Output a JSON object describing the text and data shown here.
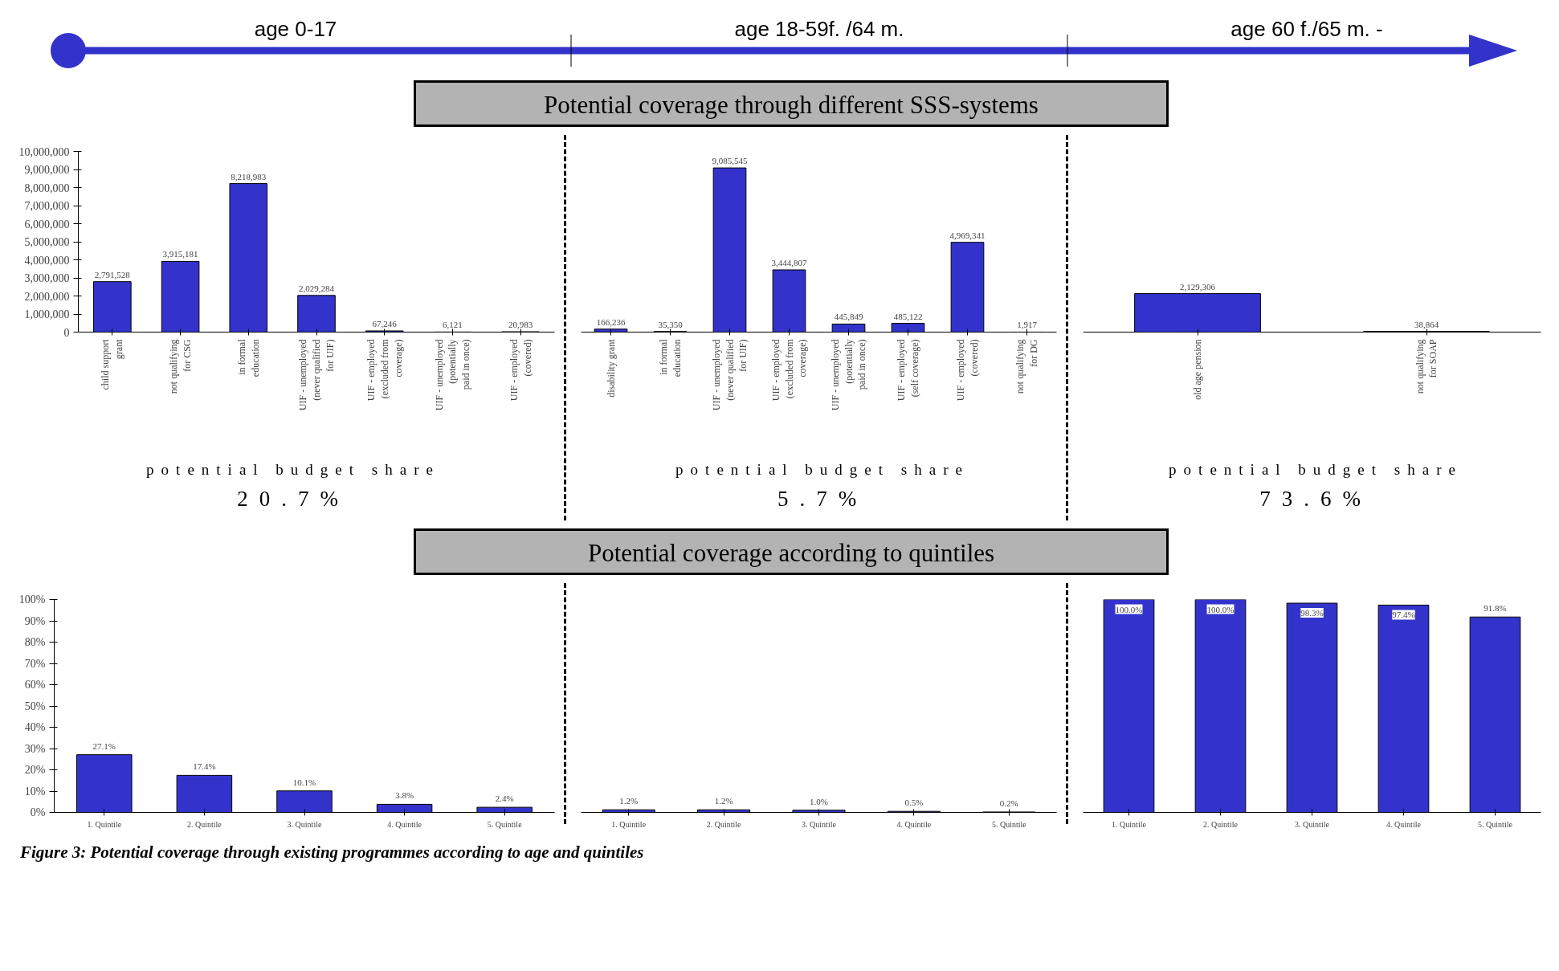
{
  "chart_data": [
    {
      "type": "other",
      "title": "Potential coverage through different SSS-systems",
      "annotations": [
        "age 0-17",
        "age 18-59f. /64 m.",
        "age 60 f./65 m. -"
      ]
    },
    {
      "type": "bar",
      "categories": [
        "child support grant",
        "not qualifying for CSG",
        "in formal education",
        "UIF - unemployed (never qualified for UIF)",
        "UIF - employed (excluded from coverage)",
        "UIF - unemployed (potentially paid in once)",
        "UIF - employed (covered)"
      ],
      "values": [
        2791528,
        3915181,
        8218983,
        2029284,
        67246,
        6121,
        20983
      ],
      "value_labels": [
        "2,791,528",
        "3,915,181",
        "8,218,983",
        "2,029,284",
        "67,246",
        "6,121",
        "20,983"
      ],
      "color": "#3333cc",
      "ylim": [
        0,
        10000000
      ],
      "yticks": [
        {
          "value": 0,
          "label": "0"
        },
        {
          "value": 1000000,
          "label": "1,000,000"
        },
        {
          "value": 2000000,
          "label": "2,000,000"
        },
        {
          "value": 3000000,
          "label": "3,000,000"
        },
        {
          "value": 4000000,
          "label": "4,000,000"
        },
        {
          "value": 5000000,
          "label": "5,000,000"
        },
        {
          "value": 6000000,
          "label": "6,000,000"
        },
        {
          "value": 7000000,
          "label": "7,000,000"
        },
        {
          "value": 8000000,
          "label": "8,000,000"
        },
        {
          "value": 9000000,
          "label": "9,000,000"
        },
        {
          "value": 10000000,
          "label": "10,000,000"
        }
      ],
      "annotations": [
        "potential budget share",
        "20.7%"
      ]
    },
    {
      "type": "bar",
      "categories": [
        "disability grant",
        "in formal education",
        "UIF - unemployed (never qualified for UIF)",
        "UIF - employed (excluded from coverage)",
        "UIF - unemployed (potentially paid in once)",
        "UIF - employed (self coverage)",
        "UIF - employed (covered)",
        "not qualifying for DG"
      ],
      "values": [
        166236,
        35350,
        9085545,
        3444807,
        445849,
        485122,
        4969341,
        1917
      ],
      "value_labels": [
        "166,236",
        "35,350",
        "9,085,545",
        "3,444,807",
        "445,849",
        "485,122",
        "4,969,341",
        "1,917"
      ],
      "color": "#3333cc",
      "ylim": [
        0,
        10000000
      ],
      "tick_labels": "x",
      "annotations": [
        "potential budget share",
        "5.7%"
      ]
    },
    {
      "type": "bar",
      "categories": [
        "old age pension",
        "not qualifying for SOAP"
      ],
      "values": [
        2129306,
        38864
      ],
      "value_labels": [
        "2,129,306",
        "38,864"
      ],
      "color": "#3333cc",
      "ylim": [
        0,
        10000000
      ],
      "tick_labels": "x",
      "annotations": [
        "potential budget share",
        "73.6%"
      ]
    },
    {
      "type": "other",
      "title": "Potential coverage according to quintiles"
    },
    {
      "type": "bar",
      "categories": [
        "1. Quintile",
        "2. Quintile",
        "3. Quintile",
        "4. Quintile",
        "5. Quintile"
      ],
      "values": [
        27.1,
        17.4,
        10.1,
        3.8,
        2.4
      ],
      "value_labels": [
        "27.1%",
        "17.4%",
        "10.1%",
        "3.8%",
        "2.4%"
      ],
      "color": "#3333cc",
      "ylim": [
        0,
        100
      ],
      "yticks": [
        {
          "value": 0,
          "label": "0%"
        },
        {
          "value": 10,
          "label": "10%"
        },
        {
          "value": 20,
          "label": "20%"
        },
        {
          "value": 30,
          "label": "30%"
        },
        {
          "value": 40,
          "label": "40%"
        },
        {
          "value": 50,
          "label": "50%"
        },
        {
          "value": 60,
          "label": "60%"
        },
        {
          "value": 70,
          "label": "70%"
        },
        {
          "value": 80,
          "label": "80%"
        },
        {
          "value": 90,
          "label": "90%"
        },
        {
          "value": 100,
          "label": "100%"
        }
      ]
    },
    {
      "type": "bar",
      "categories": [
        "1. Quintile",
        "2. Quintile",
        "3. Quintile",
        "4. Quintile",
        "5. Quintile"
      ],
      "values": [
        1.2,
        1.2,
        1.0,
        0.5,
        0.2
      ],
      "value_labels": [
        "1.2%",
        "1.2%",
        "1.0%",
        "0.5%",
        "0.2%"
      ],
      "color": "#3333cc",
      "ylim": [
        0,
        100
      ],
      "tick_labels": "x"
    },
    {
      "type": "bar",
      "categories": [
        "1. Quintile",
        "2. Quintile",
        "3. Quintile",
        "4. Quintile",
        "5. Quintile"
      ],
      "values": [
        100.0,
        100.0,
        98.3,
        97.4,
        91.8
      ],
      "value_labels": [
        "100.0%",
        "100.0%",
        "98.3%",
        "97.4%",
        "91.8%"
      ],
      "color": "#3333cc",
      "ylim": [
        0,
        100
      ],
      "tick_labels": "x"
    },
    {
      "type": "other",
      "annotations": [
        "Figure 3: Potential coverage through existing programmes according to age and quintiles"
      ]
    }
  ]
}
